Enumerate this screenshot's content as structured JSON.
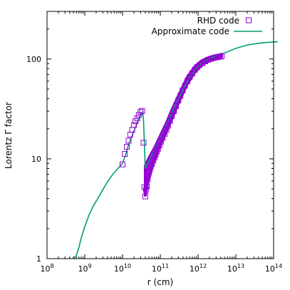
{
  "chart_data": {
    "type": "scatter",
    "xlabel": "r (cm)",
    "ylabel": "Lorentz Γ factor",
    "xscale": "log",
    "yscale": "log",
    "xlim": [
      100000000.0,
      100000000000000.0
    ],
    "ylim": [
      1,
      300
    ],
    "x_ticks": [
      {
        "value": 100000000.0,
        "base": "10",
        "exp": "8"
      },
      {
        "value": 1000000000.0,
        "base": "10",
        "exp": "9"
      },
      {
        "value": 10000000000.0,
        "base": "10",
        "exp": "10"
      },
      {
        "value": 100000000000.0,
        "base": "10",
        "exp": "11"
      },
      {
        "value": 1000000000000.0,
        "base": "10",
        "exp": "12"
      },
      {
        "value": 10000000000000.0,
        "base": "10",
        "exp": "13"
      },
      {
        "value": 100000000000000.0,
        "base": "10",
        "exp": "14"
      }
    ],
    "y_ticks": [
      {
        "value": 1,
        "label": "1"
      },
      {
        "value": 10,
        "label": "10"
      },
      {
        "value": 100,
        "label": "100"
      }
    ],
    "grid": false,
    "legend_position": "top-right",
    "colors": {
      "rhd": "#9400d3",
      "approx": "#009e73"
    },
    "series": [
      {
        "name": "RHD code",
        "kind": "scatter",
        "marker": "open-square",
        "points": [
          [
            10000000000.0,
            8.8
          ],
          [
            11500000000.0,
            11.2
          ],
          [
            13000000000.0,
            13.2
          ],
          [
            14500000000.0,
            15.2
          ],
          [
            16000000000.0,
            17.5
          ],
          [
            18000000000.0,
            19.5
          ],
          [
            20000000000.0,
            21.8
          ],
          [
            22000000000.0,
            23.8
          ],
          [
            24500000000.0,
            25.5
          ],
          [
            27000000000.0,
            27.5
          ],
          [
            30000000000.0,
            29.5
          ],
          [
            33000000000.0,
            30.2
          ],
          [
            36000000000.0,
            14.5
          ],
          [
            38000000000.0,
            5.2
          ],
          [
            40000000000.0,
            4.2
          ],
          [
            42000000000.0,
            4.9
          ],
          [
            44000000000.0,
            5.3
          ],
          [
            46000000000.0,
            6.2
          ],
          [
            48000000000.0,
            6.9
          ],
          [
            50000000000.0,
            7.3
          ],
          [
            53000000000.0,
            7.8
          ],
          [
            56000000000.0,
            8.4
          ],
          [
            60000000000.0,
            8.9
          ],
          [
            65000000000.0,
            9.6
          ],
          [
            70000000000.0,
            10.3
          ],
          [
            75000000000.0,
            11.0
          ],
          [
            80000000000.0,
            11.8
          ],
          [
            87000000000.0,
            12.6
          ],
          [
            95000000000.0,
            13.7
          ],
          [
            105000000000.0,
            14.9
          ],
          [
            115000000000.0,
            16.2
          ],
          [
            130000000000.0,
            17.8
          ],
          [
            145000000000.0,
            19.5
          ],
          [
            160000000000.0,
            21.5
          ],
          [
            180000000000.0,
            24.0
          ],
          [
            200000000000.0,
            26.8
          ],
          [
            230000000000.0,
            30.0
          ],
          [
            260000000000.0,
            33.8
          ],
          [
            300000000000.0,
            38.5
          ],
          [
            340000000000.0,
            43.0
          ],
          [
            390000000000.0,
            48.5
          ],
          [
            450000000000.0,
            54.0
          ],
          [
            520000000000.0,
            60.0
          ],
          [
            600000000000.0,
            66.0
          ],
          [
            700000000000.0,
            72.0
          ],
          [
            820000000000.0,
            78.0
          ],
          [
            950000000000.0,
            83.0
          ],
          [
            1100000000000.0,
            87.0
          ],
          [
            1300000000000.0,
            91.0
          ],
          [
            1550000000000.0,
            95.0
          ],
          [
            1850000000000.0,
            98.0
          ],
          [
            2200000000000.0,
            100.5
          ],
          [
            2600000000000.0,
            102.5
          ],
          [
            3000000000000.0,
            104.0
          ],
          [
            3400000000000.0,
            105.0
          ],
          [
            3800000000000.0,
            105.8
          ],
          [
            4200000000000.0,
            106.5
          ]
        ],
        "band": {
          "x": [
            40000000000.0,
            50000000000.0,
            70000000000.0,
            100000000000.0,
            150000000000.0,
            200000000000.0,
            300000000000.0,
            500000000000.0,
            800000000000.0,
            1200000000000.0,
            2000000000000.0,
            3000000000000.0,
            4200000000000.0
          ],
          "low": [
            4.3,
            6.8,
            9.8,
            13.8,
            19.5,
            25.0,
            36.0,
            55.0,
            73.0,
            86.0,
            97.0,
            102.0,
            105.5
          ],
          "high": [
            8.5,
            10.2,
            12.8,
            17.0,
            23.5,
            30.5,
            42.5,
            64.0,
            83.0,
            95.0,
            104.0,
            108.0,
            111.5
          ]
        }
      },
      {
        "name": "Approximate code",
        "kind": "line",
        "points": [
          [
            500000000.0,
            1.0
          ],
          [
            600000000.0,
            1.08
          ],
          [
            700000000.0,
            1.3
          ],
          [
            800000000.0,
            1.6
          ],
          [
            1000000000.0,
            2.1
          ],
          [
            1300000000.0,
            2.75
          ],
          [
            1700000000.0,
            3.4
          ],
          [
            2200000000.0,
            4.0
          ],
          [
            3000000000.0,
            4.9
          ],
          [
            4000000000.0,
            5.9
          ],
          [
            5500000000.0,
            7.0
          ],
          [
            7500000000.0,
            8.0
          ],
          [
            10000000000.0,
            9.0
          ],
          [
            12000000000.0,
            11.0
          ],
          [
            15000000000.0,
            14.5
          ],
          [
            20000000000.0,
            19.0
          ],
          [
            25000000000.0,
            23.5
          ],
          [
            30000000000.0,
            27.5
          ],
          [
            34000000000.0,
            29.5
          ],
          [
            36000000000.0,
            24.0
          ],
          [
            40000000000.0,
            8.0
          ],
          [
            46000000000.0,
            9.0
          ],
          [
            55000000000.0,
            10.3
          ],
          [
            70000000000.0,
            12.5
          ],
          [
            100000000000.0,
            16.5
          ],
          [
            130000000000.0,
            20.5
          ],
          [
            200000000000.0,
            29.0
          ],
          [
            300000000000.0,
            40.0
          ],
          [
            500000000000.0,
            58.0
          ],
          [
            800000000000.0,
            77.0
          ],
          [
            1200000000000.0,
            90.0
          ],
          [
            2000000000000.0,
            101.0
          ],
          [
            3000000000000.0,
            108.0
          ],
          [
            4200000000000.0,
            112.0
          ],
          [
            6000000000000.0,
            118.0
          ],
          [
            10000000000000.0,
            128.0
          ],
          [
            20000000000000.0,
            138.0
          ],
          [
            40000000000000.0,
            144.0
          ],
          [
            70000000000000.0,
            147.0
          ],
          [
            130000000000000.0,
            149.0
          ]
        ]
      }
    ]
  }
}
